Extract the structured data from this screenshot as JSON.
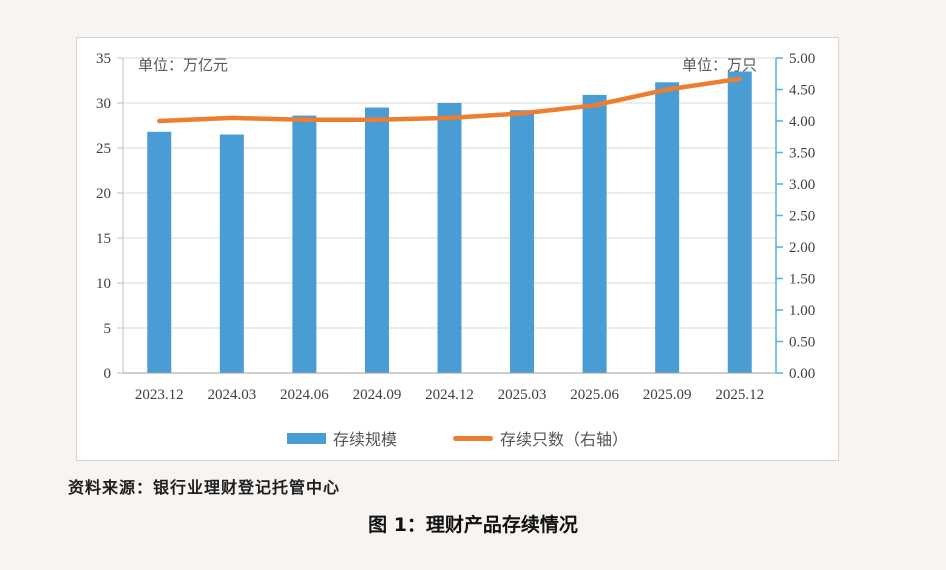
{
  "page": {
    "background": "#f7f4f1",
    "source_note": "资料来源：银行业理财登记托管中心",
    "figure_caption": "图 1：理财产品存续情况"
  },
  "chart": {
    "unit_left": "单位：万亿元",
    "unit_right": "单位：万只",
    "legend": [
      {
        "label": "存续规模",
        "swatch": "bar",
        "color": "#4A9CD5"
      },
      {
        "label": "存续只数（右轴）",
        "swatch": "line",
        "color": "#ED7D31"
      }
    ]
  },
  "colors": {
    "bar": "#4A9CD5",
    "line": "#ED7D31",
    "grid": "#D9D9D9",
    "left_axis": "#BFBFBF",
    "bottom_axis": "#9E9E9E",
    "right_axis": "#4FB3DF",
    "tick_text": "#404040",
    "unit_text": "#595959"
  },
  "chart_data": {
    "type": "combo-bar-line",
    "categories": [
      "2023.12",
      "2024.03",
      "2024.06",
      "2024.09",
      "2024.12",
      "2025.03",
      "2025.06",
      "2025.09",
      "2025.12"
    ],
    "series": [
      {
        "name": "存续规模",
        "type": "bar",
        "axis": "left",
        "unit": "万亿元",
        "color": "#4A9CD5",
        "values": [
          26.8,
          26.5,
          28.6,
          29.5,
          30.0,
          29.2,
          30.9,
          32.3,
          33.5
        ]
      },
      {
        "name": "存续只数（右轴）",
        "type": "line",
        "axis": "right",
        "unit": "万只",
        "color": "#ED7D31",
        "values": [
          4.0,
          4.05,
          4.02,
          4.02,
          4.05,
          4.12,
          4.25,
          4.5,
          4.67
        ]
      }
    ],
    "left_axis": {
      "min": 0,
      "max": 35,
      "step": 5,
      "tick_labels": [
        "35",
        "30",
        "25",
        "20",
        "15",
        "10",
        "5",
        "0"
      ]
    },
    "right_axis": {
      "min": 0,
      "max": 5,
      "step": 0.5,
      "tick_labels": [
        "5.00",
        "4.50",
        "4.00",
        "3.50",
        "3.00",
        "2.50",
        "2.00",
        "1.50",
        "1.00",
        "0.50",
        "0.00"
      ]
    },
    "grid": true,
    "legend_position": "bottom"
  }
}
